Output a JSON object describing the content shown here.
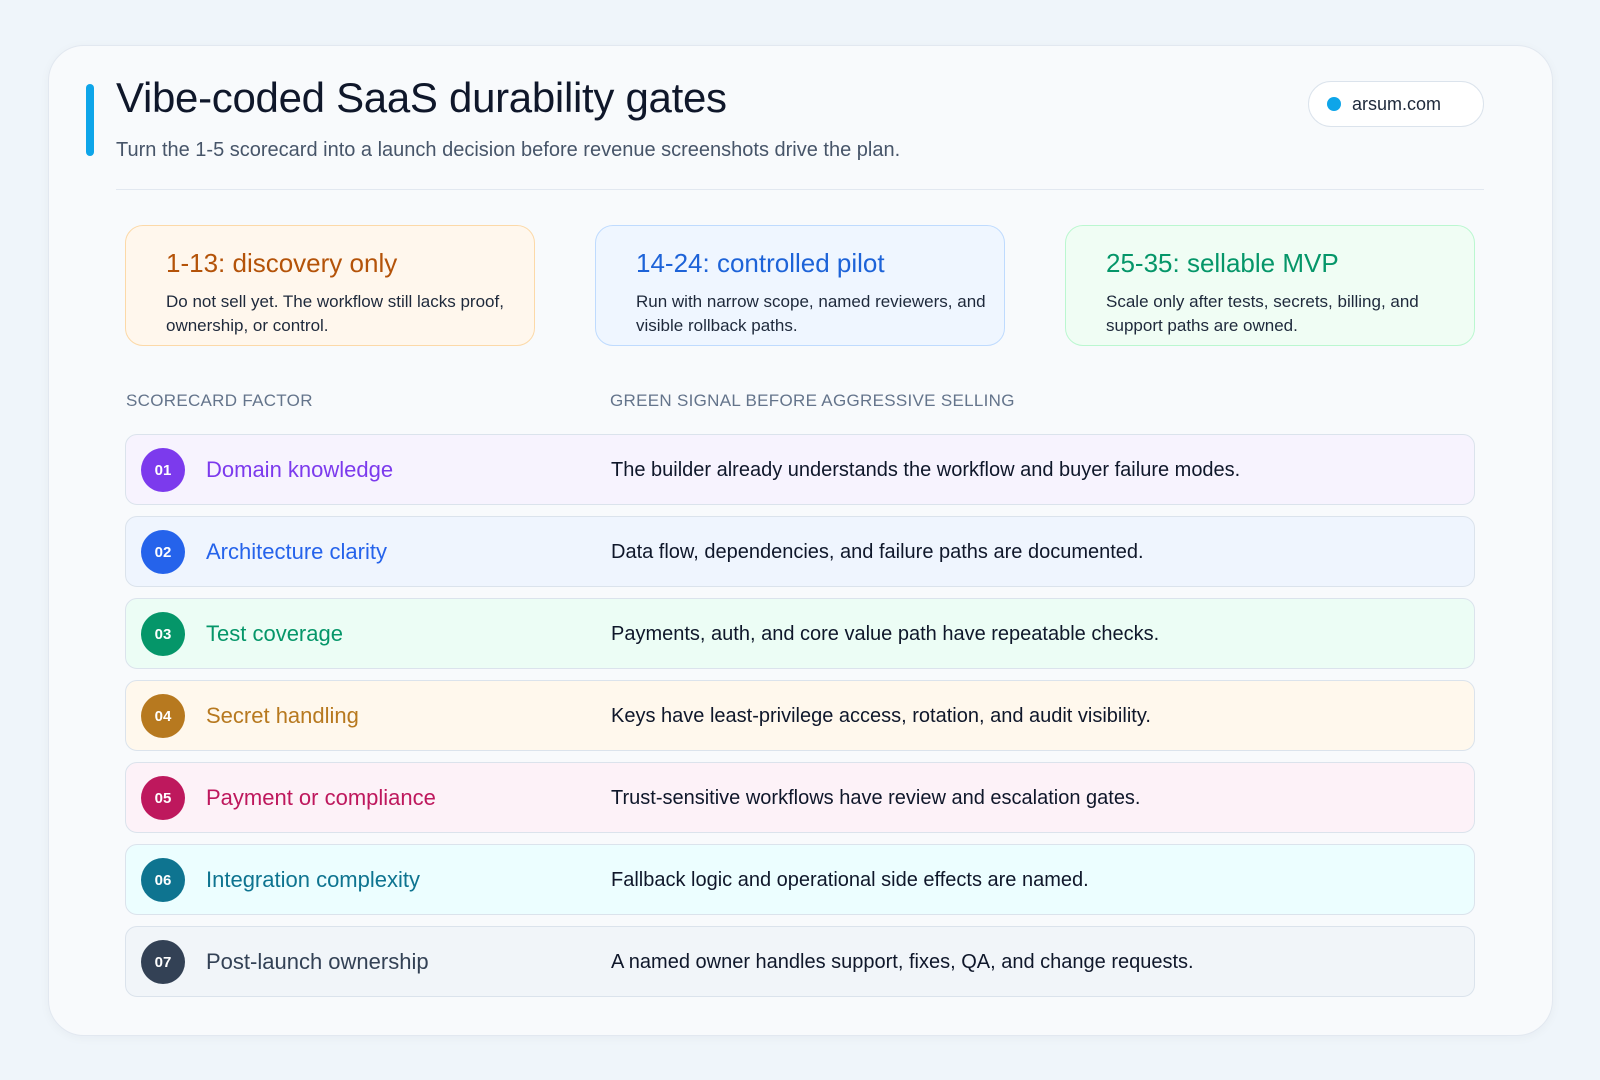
{
  "header": {
    "title": "Vibe-coded SaaS durability gates",
    "subtitle": "Turn the 1-5 scorecard into a launch decision before revenue screenshots drive the plan.",
    "site": "arsum.com",
    "accent_color": "#0ea5e9"
  },
  "bands": [
    {
      "title": "1-13: discovery only",
      "description": "Do not sell yet. The workflow still lacks proof, ownership, or control.",
      "color": "#b45309",
      "bg": "#fff7ed",
      "border": "#fcd9a8"
    },
    {
      "title": "14-24: controlled pilot",
      "description": "Run with narrow scope, named reviewers, and visible rollback paths.",
      "color": "#1d63d8",
      "bg": "#eff6ff",
      "border": "#bfdbfe"
    },
    {
      "title": "25-35: sellable MVP",
      "description": "Scale only after tests, secrets, billing, and support paths are owned.",
      "color": "#059669",
      "bg": "#f0fdf4",
      "border": "#bbf7d0"
    }
  ],
  "columns": {
    "factor": "SCORECARD FACTOR",
    "signal": "GREEN SIGNAL BEFORE AGGRESSIVE SELLING"
  },
  "factors": [
    {
      "num": "01",
      "name": "Domain knowledge",
      "signal": "The builder already understands the workflow and buyer failure modes.",
      "color": "#7c3aed",
      "bg": "#f7f3fe"
    },
    {
      "num": "02",
      "name": "Architecture clarity",
      "signal": "Data flow, dependencies, and failure paths are documented.",
      "color": "#2563eb",
      "bg": "#eff5fe"
    },
    {
      "num": "03",
      "name": "Test coverage",
      "signal": "Payments, auth, and core value path have repeatable checks.",
      "color": "#059669",
      "bg": "#ecfdf5"
    },
    {
      "num": "04",
      "name": "Secret handling",
      "signal": "Keys have least-privilege access, rotation, and audit visibility.",
      "color": "#b7791f",
      "bg": "#fff8ed"
    },
    {
      "num": "05",
      "name": "Payment or compliance",
      "signal": "Trust-sensitive workflows have review and escalation gates.",
      "color": "#be185d",
      "bg": "#fdf2f8"
    },
    {
      "num": "06",
      "name": "Integration complexity",
      "signal": "Fallback logic and operational side effects are named.",
      "color": "#0e7490",
      "bg": "#ecfeff"
    },
    {
      "num": "07",
      "name": "Post-launch ownership",
      "signal": "A named owner handles support, fixes, QA, and change requests.",
      "color": "#334155",
      "bg": "#f1f5f9"
    }
  ]
}
